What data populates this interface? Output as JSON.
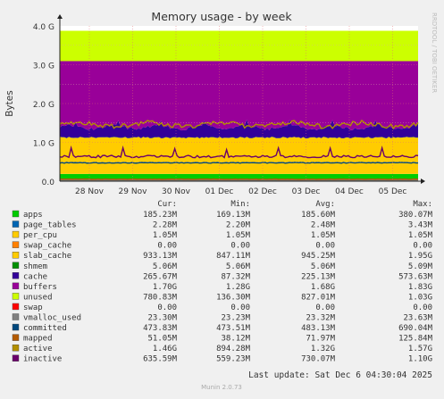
{
  "chart_data": {
    "type": "area",
    "title": "Memory usage - by week",
    "ylabel": "Bytes",
    "xlabel": "",
    "ylim": [
      0,
      4.0
    ],
    "y_unit": "G",
    "grid": true,
    "y_ticks": [
      "0.0",
      "1.0 G",
      "2.0 G",
      "3.0 G",
      "4.0 G"
    ],
    "x_ticks": [
      "28 Nov",
      "29 Nov",
      "30 Nov",
      "01 Dec",
      "02 Dec",
      "03 Dec",
      "04 Dec",
      "05 Dec"
    ],
    "side_label": "RRDTOOL / TOBI OETIKER",
    "columns": [
      "Cur:",
      "Min:",
      "Avg:",
      "Max:"
    ],
    "series": [
      {
        "name": "apps",
        "color": "#00cc00",
        "kind": "stack",
        "cur": "185.23M",
        "min": "169.13M",
        "avg": "185.60M",
        "max": "380.07M",
        "value_g": 0.185
      },
      {
        "name": "page_tables",
        "color": "#0066b3",
        "kind": "stack",
        "cur": "2.28M",
        "min": "2.20M",
        "avg": "2.48M",
        "max": "3.43M",
        "value_g": 0.002
      },
      {
        "name": "per_cpu",
        "color": "#ffcc00",
        "kind": "stack",
        "cur": "1.05M",
        "min": "1.05M",
        "avg": "1.05M",
        "max": "1.05M",
        "value_g": 0.001
      },
      {
        "name": "swap_cache",
        "color": "#ff8000",
        "kind": "stack",
        "cur": "0.00",
        "min": "0.00",
        "avg": "0.00",
        "max": "0.00",
        "value_g": 0.0
      },
      {
        "name": "slab_cache",
        "color": "#ffcc00",
        "kind": "stack",
        "cur": "933.13M",
        "min": "847.11M",
        "avg": "945.25M",
        "max": "1.95G",
        "value_g": 0.933
      },
      {
        "name": "shmem",
        "color": "#008f00",
        "kind": "stack",
        "cur": "5.06M",
        "min": "5.06M",
        "avg": "5.06M",
        "max": "5.09M",
        "value_g": 0.005
      },
      {
        "name": "cache",
        "color": "#330099",
        "kind": "stack",
        "cur": "265.67M",
        "min": "87.32M",
        "avg": "225.13M",
        "max": "573.63M",
        "value_g": 0.266
      },
      {
        "name": "buffers",
        "color": "#990099",
        "kind": "stack",
        "cur": "1.70G",
        "min": "1.28G",
        "avg": "1.68G",
        "max": "1.83G",
        "value_g": 1.7
      },
      {
        "name": "unused",
        "color": "#ccff00",
        "kind": "stack",
        "cur": "780.83M",
        "min": "136.30M",
        "avg": "827.01M",
        "max": "1.03G",
        "value_g": 0.781
      },
      {
        "name": "swap",
        "color": "#ff0000",
        "kind": "stack",
        "cur": "0.00",
        "min": "0.00",
        "avg": "0.00",
        "max": "0.00",
        "value_g": 0.0
      },
      {
        "name": "vmalloc_used",
        "color": "#808080",
        "kind": "line",
        "cur": "23.30M",
        "min": "23.23M",
        "avg": "23.32M",
        "max": "23.63M",
        "value_g": 0.023
      },
      {
        "name": "committed",
        "color": "#00487d",
        "kind": "line",
        "cur": "473.83M",
        "min": "473.51M",
        "avg": "483.13M",
        "max": "690.04M",
        "value_g": 0.474
      },
      {
        "name": "mapped",
        "color": "#b35a00",
        "kind": "line",
        "cur": "51.05M",
        "min": "38.12M",
        "avg": "71.97M",
        "max": "125.84M",
        "value_g": 0.051
      },
      {
        "name": "active",
        "color": "#b38f00",
        "kind": "line",
        "cur": "1.46G",
        "min": "894.28M",
        "avg": "1.32G",
        "max": "1.57G",
        "value_g": 1.46
      },
      {
        "name": "inactive",
        "color": "#6b006b",
        "kind": "line",
        "cur": "635.59M",
        "min": "559.23M",
        "avg": "730.07M",
        "max": "1.10G",
        "value_g": 0.636
      }
    ]
  },
  "footer": {
    "last_update": "Last update: Sat Dec  6 04:30:04 2025",
    "version": "Munin 2.0.73"
  }
}
